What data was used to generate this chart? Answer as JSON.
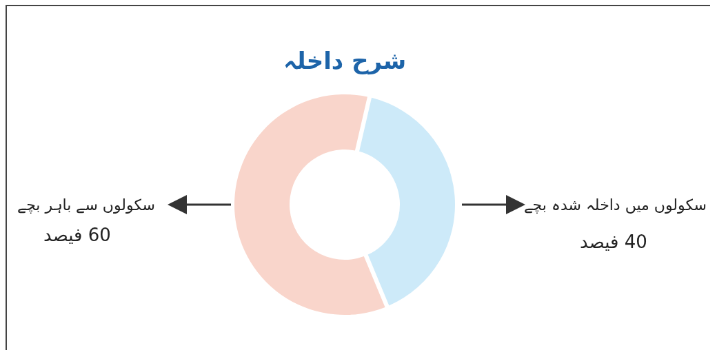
{
  "chart_data": {
    "type": "donut",
    "title": "شرح داخلہ",
    "categories": [
      "سکولوں میں داخلہ شدہ بچے",
      "سکولوں سے باہر بچے"
    ],
    "values": [
      40,
      60
    ],
    "colors": [
      "#cdeaf9",
      "#f9d5cb"
    ],
    "value_labels": [
      "40 فیصد",
      "60 فیصد"
    ]
  }
}
